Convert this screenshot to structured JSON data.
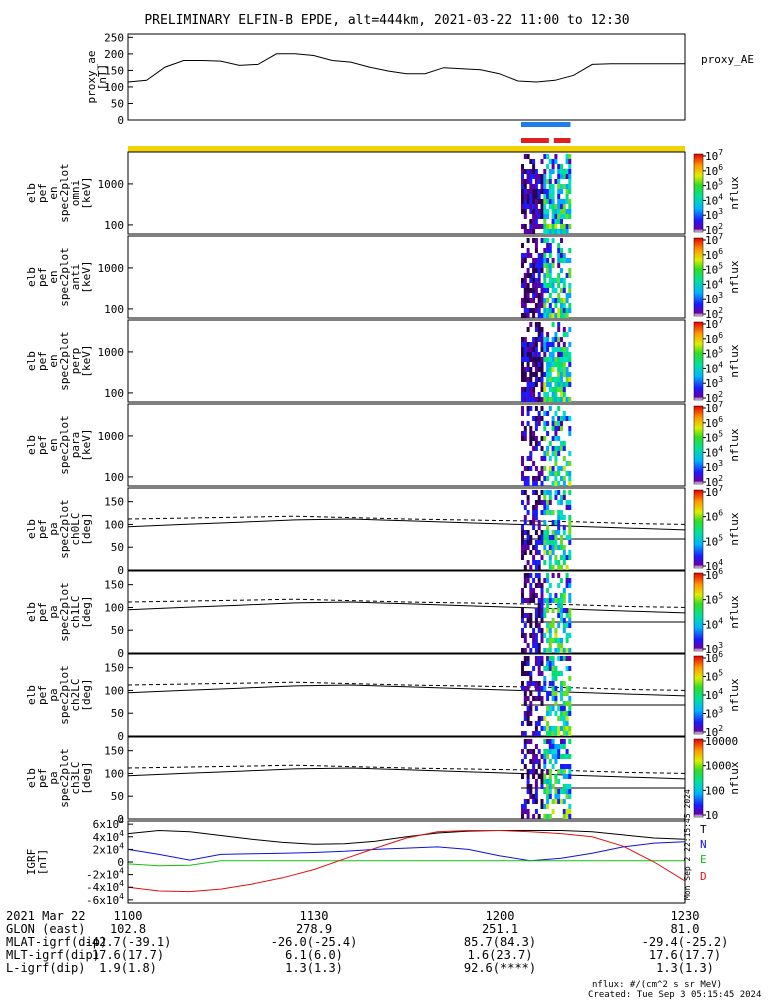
{
  "title": "PRELIMINARY ELFIN-B EPDE, alt=444km, 2021-03-22 11:00 to 12:30",
  "ae_label": "proxy_AE",
  "created": "Created: Tue Sep  3 05:15:45 2024",
  "nflux_units": "nflux: #/(cm^2 s sr MeV)",
  "vertical_stamp": "Mon Sep  2 22:15:45 2024",
  "colorbar_label": "nflux",
  "time_labels": [
    "1100",
    "1130",
    "1200",
    "1230"
  ],
  "footer_rows": [
    {
      "label": "2021 Mar 22",
      "values": [
        "1100",
        "1130",
        "1200",
        "1230"
      ]
    },
    {
      "label": "GLON (east)",
      "values": [
        "102.8",
        "278.9",
        "251.1",
        "81.0"
      ]
    },
    {
      "label": "MLAT-igrf(dip)",
      "values": [
        "-42.7(-39.1)",
        "-26.0(-25.4)",
        "85.7(84.3)",
        "-29.4(-25.2)"
      ]
    },
    {
      "label": "MLT-igrf(dip)",
      "values": [
        "17.6(17.7)",
        "6.1(6.0)",
        "1.6(23.7)",
        "17.6(17.7)"
      ]
    },
    {
      "label": "L-igrf(dip)",
      "values": [
        "1.9(1.8)",
        "1.3(1.3)",
        "92.6(****)",
        "1.3(1.3)"
      ]
    }
  ],
  "chart_data": [
    {
      "type": "line",
      "name": "proxy_ae",
      "ylabel": [
        "proxy_ae",
        "[nT]"
      ],
      "ylim": [
        0,
        260
      ],
      "yticks": [
        "0",
        "50",
        "100",
        "150",
        "200",
        "250"
      ],
      "ytick_values": [
        0,
        50,
        100,
        150,
        200,
        250
      ],
      "x_minutes": [
        0,
        3,
        6,
        9,
        12,
        15,
        18,
        21,
        24,
        27,
        30,
        33,
        36,
        39,
        42,
        45,
        48,
        51,
        54,
        57,
        60,
        63,
        66,
        69,
        72,
        75,
        78,
        81,
        84,
        87,
        90
      ],
      "values": [
        115,
        120,
        160,
        180,
        180,
        178,
        165,
        168,
        200,
        200,
        195,
        180,
        175,
        160,
        148,
        140,
        140,
        158,
        155,
        152,
        140,
        118,
        115,
        120,
        135,
        168,
        170,
        170,
        170,
        170,
        170
      ]
    },
    {
      "type": "table",
      "name": "status_bars",
      "rows": [
        {
          "color": "#1e7fe8",
          "start_min": 63.5,
          "end_min": 71.5
        },
        {
          "color": "#e02020",
          "start_min": 63.5,
          "end_min": 68.0
        },
        {
          "color": "#e02020",
          "start_min": 68.8,
          "end_min": 71.5
        },
        {
          "color": "#f2d200",
          "start_min": 0,
          "end_min": 90
        }
      ]
    },
    {
      "type": "heatmap",
      "panels": [
        {
          "ylabel": [
            "elb",
            "pef",
            "en",
            "spec2plot",
            "omni",
            "[keV]"
          ],
          "yscale": "log",
          "ylim": [
            60,
            6000
          ],
          "yticks": [
            "100",
            "1000"
          ],
          "ytick_values": [
            100,
            1000
          ],
          "cbar_ticks": [
            "10^2",
            "10^3",
            "10^4",
            "10^5",
            "10^6",
            "10^7"
          ]
        },
        {
          "ylabel": [
            "elb",
            "pef",
            "en",
            "spec2plot",
            "anti",
            "[keV]"
          ],
          "yscale": "log",
          "ylim": [
            60,
            6000
          ],
          "yticks": [
            "100",
            "1000"
          ],
          "ytick_values": [
            100,
            1000
          ],
          "cbar_ticks": [
            "10^2",
            "10^3",
            "10^4",
            "10^5",
            "10^6",
            "10^7"
          ]
        },
        {
          "ylabel": [
            "elb",
            "pef",
            "en",
            "spec2plot",
            "perp",
            "[keV]"
          ],
          "yscale": "log",
          "ylim": [
            60,
            6000
          ],
          "yticks": [
            "100",
            "1000"
          ],
          "ytick_values": [
            100,
            1000
          ],
          "cbar_ticks": [
            "10^2",
            "10^3",
            "10^4",
            "10^5",
            "10^6",
            "10^7"
          ]
        },
        {
          "ylabel": [
            "elb",
            "pef",
            "en",
            "spec2plot",
            "para",
            "[keV]"
          ],
          "yscale": "log",
          "ylim": [
            60,
            6000
          ],
          "yticks": [
            "100",
            "1000"
          ],
          "ytick_values": [
            100,
            1000
          ],
          "cbar_ticks": [
            "10^2",
            "10^3",
            "10^4",
            "10^5",
            "10^6",
            "10^7"
          ]
        },
        {
          "ylabel": [
            "elb",
            "pef",
            "pa",
            "spec2plot",
            "ch0LC",
            "[deg]"
          ],
          "yscale": "linear",
          "ylim": [
            0,
            180
          ],
          "yticks": [
            "0",
            "50",
            "100",
            "150"
          ],
          "ytick_values": [
            0,
            50,
            100,
            150
          ],
          "cbar_ticks": [
            "10^4",
            "10^5",
            "10^6",
            "10^7"
          ]
        },
        {
          "ylabel": [
            "elb",
            "pef",
            "pa",
            "spec2plot",
            "ch1LC",
            "[deg]"
          ],
          "yscale": "linear",
          "ylim": [
            0,
            180
          ],
          "yticks": [
            "0",
            "50",
            "100",
            "150"
          ],
          "ytick_values": [
            0,
            50,
            100,
            150
          ],
          "cbar_ticks": [
            "10^3",
            "10^4",
            "10^5",
            "10^6"
          ]
        },
        {
          "ylabel": [
            "elb",
            "pef",
            "pa",
            "spec2plot",
            "ch2LC",
            "[deg]"
          ],
          "yscale": "linear",
          "ylim": [
            0,
            180
          ],
          "yticks": [
            "0",
            "50",
            "100",
            "150"
          ],
          "ytick_values": [
            0,
            50,
            100,
            150
          ],
          "cbar_ticks": [
            "10^2",
            "10^3",
            "10^4",
            "10^5",
            "10^6"
          ]
        },
        {
          "ylabel": [
            "elb",
            "pef",
            "pa",
            "spec2plot",
            "ch3LC",
            "[deg]"
          ],
          "yscale": "linear",
          "ylim": [
            0,
            180
          ],
          "yticks": [
            "0",
            "50",
            "100",
            "150"
          ],
          "ytick_values": [
            0,
            50,
            100,
            150
          ],
          "cbar_ticks": [
            "10",
            "100",
            "1000",
            "10000"
          ]
        }
      ]
    },
    {
      "type": "line",
      "name": "IGRF",
      "ylabel": [
        "IGRF",
        "[nT]"
      ],
      "ylim": [
        -65000,
        65000
      ],
      "yticks": [
        "-6x10^4",
        "-4x10^4",
        "-2x10^4",
        "0",
        "2x10^4",
        "4x10^4",
        "6x10^4"
      ],
      "ytick_values": [
        -60000,
        -40000,
        -20000,
        0,
        20000,
        40000,
        60000
      ],
      "x_minutes": [
        0,
        5,
        10,
        15,
        20,
        25,
        30,
        35,
        40,
        45,
        50,
        55,
        60,
        65,
        70,
        75,
        80,
        85,
        90
      ],
      "series": [
        {
          "name": "T",
          "color": "#000000",
          "values": [
            45000,
            50000,
            48000,
            42000,
            36000,
            31000,
            28000,
            29000,
            33000,
            40000,
            46000,
            49000,
            50000,
            50000,
            50000,
            48000,
            43000,
            38000,
            36000
          ]
        },
        {
          "name": "N",
          "color": "#1010e0",
          "values": [
            20000,
            12000,
            3000,
            12000,
            13000,
            14000,
            15000,
            17000,
            20000,
            22000,
            24000,
            20000,
            10000,
            2000,
            6000,
            14000,
            24000,
            30000,
            32000
          ]
        },
        {
          "name": "E",
          "color": "#10c010",
          "values": [
            -3000,
            -6000,
            -5000,
            2000,
            2000,
            2000,
            2000,
            2000,
            2000,
            2000,
            2000,
            2000,
            2000,
            2000,
            2000,
            2000,
            2000,
            2000,
            2000
          ]
        },
        {
          "name": "D",
          "color": "#e01010",
          "values": [
            -40000,
            -46000,
            -47000,
            -43000,
            -35000,
            -25000,
            -12000,
            5000,
            22000,
            38000,
            48000,
            50000,
            50000,
            48000,
            45000,
            40000,
            25000,
            0,
            -30000
          ]
        }
      ]
    }
  ]
}
